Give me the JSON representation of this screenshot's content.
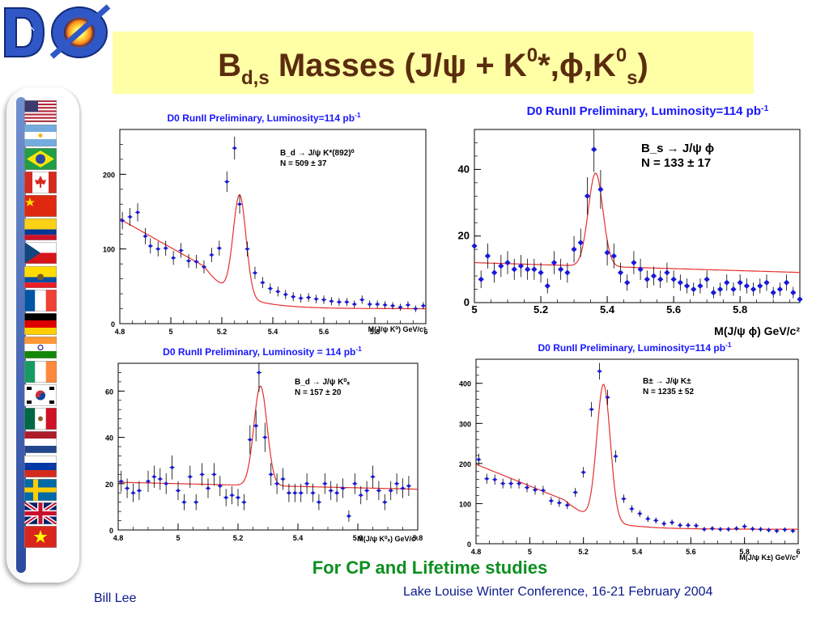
{
  "slide": {
    "title_main": "B",
    "title_sub": "d,s",
    "title_rest": " Masses (J/ψ + K",
    "title_sup1": "0",
    "title_rest2": "*,ϕ,K",
    "title_sup2": "0",
    "title_sub2": "s",
    "title_close": ")",
    "highlight": "For CP and Lifetime studies",
    "author": "Bill Lee",
    "conference": "Lake Louise Winter Conference, 16-21 February 2004"
  },
  "logo": {
    "name": "D0 experiment logo",
    "text": "DØ"
  },
  "flags": [
    "usa",
    "argentina",
    "brazil",
    "canada",
    "china",
    "colombia",
    "czech-republic",
    "ecuador",
    "france",
    "germany",
    "india",
    "ireland",
    "south-korea",
    "mexico",
    "netherlands",
    "russia",
    "sweden",
    "united-kingdom",
    "vietnam"
  ],
  "colors": {
    "fit": "#e53030",
    "points": "#1818d8",
    "header": "#1818ff",
    "title": "#5b2c0e",
    "highlight": "#0c8f1f"
  },
  "chart_data": [
    {
      "type": "scatter",
      "title": "D0 RunII  Preliminary, Luminosity=114 pb",
      "title_sup": "-1",
      "xlabel": "M(J/ψ K⁰) GeV/c²",
      "ylabel": "",
      "xlim": [
        4.8,
        6.0
      ],
      "ylim": [
        0,
        260
      ],
      "xticks": [
        4.8,
        5.0,
        5.2,
        5.4,
        5.6,
        5.8,
        6.0
      ],
      "xtick_labels": [
        "4.8",
        "5",
        "5.2",
        "5.4",
        "5.6",
        "5.8",
        "6"
      ],
      "yticks": [
        0,
        100,
        200
      ],
      "ytick_labels": [
        "0",
        "100",
        "200"
      ],
      "legend_line1": "B_d → J/ψ K*(892)⁰",
      "legend_line2": "N =  509 ± 37",
      "fit": {
        "a": 140,
        "b": 82,
        "c": 20,
        "mu": 5.27,
        "sigma": 0.025,
        "amp": 135,
        "thr": 5.13
      },
      "points": [
        [
          4.81,
          138
        ],
        [
          4.84,
          143
        ],
        [
          4.87,
          149
        ],
        [
          4.9,
          117
        ],
        [
          4.92,
          104
        ],
        [
          4.95,
          100
        ],
        [
          4.98,
          101
        ],
        [
          5.01,
          88
        ],
        [
          5.04,
          98
        ],
        [
          5.07,
          84
        ],
        [
          5.1,
          83
        ],
        [
          5.13,
          76
        ],
        [
          5.16,
          92
        ],
        [
          5.19,
          101
        ],
        [
          5.22,
          190
        ],
        [
          5.25,
          235
        ],
        [
          5.27,
          160
        ],
        [
          5.3,
          100
        ],
        [
          5.33,
          68
        ],
        [
          5.36,
          55
        ],
        [
          5.39,
          47
        ],
        [
          5.42,
          43
        ],
        [
          5.45,
          39
        ],
        [
          5.48,
          36
        ],
        [
          5.51,
          34
        ],
        [
          5.54,
          35
        ],
        [
          5.57,
          33
        ],
        [
          5.6,
          32
        ],
        [
          5.63,
          30
        ],
        [
          5.66,
          29
        ],
        [
          5.69,
          29
        ],
        [
          5.72,
          26
        ],
        [
          5.75,
          32
        ],
        [
          5.78,
          26
        ],
        [
          5.81,
          26
        ],
        [
          5.84,
          25
        ],
        [
          5.87,
          24
        ],
        [
          5.9,
          22
        ],
        [
          5.93,
          25
        ],
        [
          5.96,
          20
        ],
        [
          5.99,
          24
        ]
      ]
    },
    {
      "type": "scatter",
      "title": "D0 RunII  Preliminary, Luminosity=114 pb",
      "title_sup": "-1",
      "xlabel": "M(J/ψ ϕ) GeV/c²",
      "ylabel": "",
      "xlim": [
        5.0,
        5.98
      ],
      "ylim": [
        0,
        52
      ],
      "xticks": [
        5.0,
        5.2,
        5.4,
        5.6,
        5.8
      ],
      "xtick_labels": [
        "5",
        "5.2",
        "5.4",
        "5.6",
        "5.8"
      ],
      "yticks": [
        0,
        20,
        40
      ],
      "ytick_labels": [
        "0",
        "20",
        "40"
      ],
      "legend_line1": "B_s → J/ψ ϕ",
      "legend_line2": "N =  133 ± 17",
      "fit": {
        "a": 12,
        "b": 3,
        "c": 0,
        "mu": 5.365,
        "sigma": 0.022,
        "amp": 28,
        "thr": 0
      },
      "points": [
        [
          5.0,
          17
        ],
        [
          5.02,
          7
        ],
        [
          5.04,
          14
        ],
        [
          5.06,
          9
        ],
        [
          5.08,
          11
        ],
        [
          5.1,
          12
        ],
        [
          5.12,
          10
        ],
        [
          5.14,
          11
        ],
        [
          5.16,
          10
        ],
        [
          5.18,
          10
        ],
        [
          5.2,
          9
        ],
        [
          5.22,
          5
        ],
        [
          5.24,
          12
        ],
        [
          5.26,
          10
        ],
        [
          5.28,
          9
        ],
        [
          5.3,
          16
        ],
        [
          5.32,
          18
        ],
        [
          5.34,
          32
        ],
        [
          5.36,
          46
        ],
        [
          5.38,
          34
        ],
        [
          5.4,
          15
        ],
        [
          5.42,
          14
        ],
        [
          5.44,
          9
        ],
        [
          5.46,
          6
        ],
        [
          5.48,
          12
        ],
        [
          5.5,
          10
        ],
        [
          5.52,
          7
        ],
        [
          5.54,
          8
        ],
        [
          5.56,
          7
        ],
        [
          5.58,
          9
        ],
        [
          5.6,
          7
        ],
        [
          5.62,
          6
        ],
        [
          5.64,
          5
        ],
        [
          5.66,
          4
        ],
        [
          5.68,
          5
        ],
        [
          5.7,
          7
        ],
        [
          5.72,
          3
        ],
        [
          5.74,
          4
        ],
        [
          5.76,
          6
        ],
        [
          5.78,
          4
        ],
        [
          5.8,
          6
        ],
        [
          5.82,
          5
        ],
        [
          5.84,
          4
        ],
        [
          5.86,
          5
        ],
        [
          5.88,
          6
        ],
        [
          5.9,
          3
        ],
        [
          5.92,
          4
        ],
        [
          5.94,
          6
        ],
        [
          5.96,
          3
        ],
        [
          5.98,
          1
        ]
      ]
    },
    {
      "type": "scatter",
      "title": "D0 RunII  Preliminary, Luminosity = 114 pb",
      "title_sup": "-1",
      "xlabel": "M(J/ψ K⁰ₛ) GeV/c²",
      "ylabel": "",
      "xlim": [
        4.8,
        5.8
      ],
      "ylim": [
        0,
        72
      ],
      "xticks": [
        4.8,
        5.0,
        5.2,
        5.4,
        5.6,
        5.8
      ],
      "xtick_labels": [
        "4.8",
        "5",
        "5.2",
        "5.4",
        "5.6",
        "5.8"
      ],
      "yticks": [
        0,
        20,
        40,
        60
      ],
      "ytick_labels": [
        "0",
        "20",
        "40",
        "60"
      ],
      "legend_line1": "B_d → J/ψ K⁰ₛ",
      "legend_line2": "N =  157 ± 20",
      "fit": {
        "a": 20,
        "b": 3,
        "c": 0,
        "mu": 5.275,
        "sigma": 0.022,
        "amp": 43,
        "thr": 0
      },
      "points": [
        [
          4.81,
          21
        ],
        [
          4.83,
          18
        ],
        [
          4.85,
          16
        ],
        [
          4.87,
          17
        ],
        [
          4.9,
          21
        ],
        [
          4.92,
          23
        ],
        [
          4.94,
          22
        ],
        [
          4.96,
          20
        ],
        [
          4.98,
          27
        ],
        [
          5.0,
          17
        ],
        [
          5.02,
          12
        ],
        [
          5.04,
          23
        ],
        [
          5.06,
          12
        ],
        [
          5.08,
          24
        ],
        [
          5.1,
          18
        ],
        [
          5.12,
          24
        ],
        [
          5.14,
          19
        ],
        [
          5.16,
          14
        ],
        [
          5.18,
          15
        ],
        [
          5.2,
          14
        ],
        [
          5.22,
          12
        ],
        [
          5.24,
          39
        ],
        [
          5.26,
          45
        ],
        [
          5.27,
          68
        ],
        [
          5.29,
          40
        ],
        [
          5.31,
          24
        ],
        [
          5.33,
          20
        ],
        [
          5.35,
          22
        ],
        [
          5.37,
          16
        ],
        [
          5.39,
          16
        ],
        [
          5.41,
          16
        ],
        [
          5.43,
          20
        ],
        [
          5.45,
          16
        ],
        [
          5.47,
          12
        ],
        [
          5.49,
          20
        ],
        [
          5.51,
          17
        ],
        [
          5.53,
          16
        ],
        [
          5.55,
          18
        ],
        [
          5.57,
          6
        ],
        [
          5.59,
          20
        ],
        [
          5.61,
          15
        ],
        [
          5.63,
          17
        ],
        [
          5.65,
          23
        ],
        [
          5.67,
          17
        ],
        [
          5.69,
          12
        ],
        [
          5.71,
          17
        ],
        [
          5.73,
          20
        ],
        [
          5.75,
          18
        ],
        [
          5.77,
          19
        ]
      ]
    },
    {
      "type": "scatter",
      "title": "D0 RunII  Preliminary, Luminosity=114 pb",
      "title_sup": "-1",
      "xlabel": "M(J/ψ K±) GeV/c²",
      "ylabel": "",
      "xlim": [
        4.8,
        6.0
      ],
      "ylim": [
        0,
        460
      ],
      "xticks": [
        4.8,
        5.0,
        5.2,
        5.4,
        5.6,
        5.8,
        6.0
      ],
      "xtick_labels": [
        "4.8",
        "5",
        "5.2",
        "5.4",
        "5.6",
        "5.8",
        "6"
      ],
      "yticks": [
        0,
        100,
        200,
        300,
        400
      ],
      "ytick_labels": [
        "0",
        "100",
        "200",
        "300",
        "400"
      ],
      "legend_line1": "B± → J/ψ K±",
      "legend_line2": "N =  1235 ± 52",
      "fit": {
        "a": 198,
        "b": 130,
        "c": 36,
        "mu": 5.275,
        "sigma": 0.025,
        "amp": 340,
        "thr": 5.13
      },
      "points": [
        [
          4.81,
          210
        ],
        [
          4.84,
          162
        ],
        [
          4.87,
          160
        ],
        [
          4.9,
          150
        ],
        [
          4.93,
          150
        ],
        [
          4.96,
          150
        ],
        [
          4.99,
          140
        ],
        [
          5.02,
          134
        ],
        [
          5.05,
          133
        ],
        [
          5.08,
          107
        ],
        [
          5.11,
          102
        ],
        [
          5.14,
          96
        ],
        [
          5.17,
          128
        ],
        [
          5.2,
          178
        ],
        [
          5.23,
          335
        ],
        [
          5.26,
          430
        ],
        [
          5.29,
          365
        ],
        [
          5.32,
          218
        ],
        [
          5.35,
          112
        ],
        [
          5.38,
          87
        ],
        [
          5.41,
          75
        ],
        [
          5.44,
          62
        ],
        [
          5.47,
          58
        ],
        [
          5.5,
          50
        ],
        [
          5.53,
          53
        ],
        [
          5.56,
          46
        ],
        [
          5.59,
          46
        ],
        [
          5.62,
          45
        ],
        [
          5.65,
          36
        ],
        [
          5.68,
          38
        ],
        [
          5.71,
          36
        ],
        [
          5.74,
          36
        ],
        [
          5.77,
          38
        ],
        [
          5.8,
          43
        ],
        [
          5.83,
          37
        ],
        [
          5.86,
          36
        ],
        [
          5.89,
          34
        ],
        [
          5.92,
          32
        ],
        [
          5.95,
          35
        ],
        [
          5.98,
          32
        ]
      ]
    }
  ]
}
